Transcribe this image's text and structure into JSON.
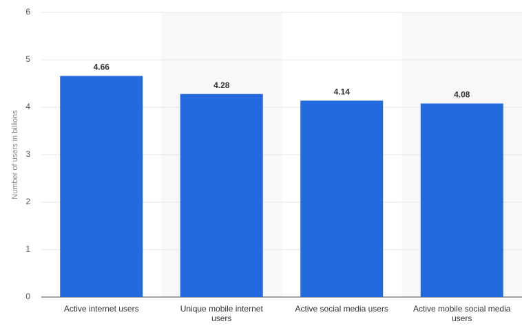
{
  "chart_data": {
    "type": "bar",
    "y_axis_label": "Number of users in billions",
    "categories": [
      "Active internet users",
      "Unique mobile internet users",
      "Active social media users",
      "Active mobile social media users"
    ],
    "values": [
      4.66,
      4.28,
      4.14,
      4.08
    ],
    "color": "#2369e0",
    "ylim": [
      0,
      6
    ],
    "yticks": [
      0,
      1,
      2,
      3,
      4,
      5,
      6
    ],
    "grid": true
  }
}
